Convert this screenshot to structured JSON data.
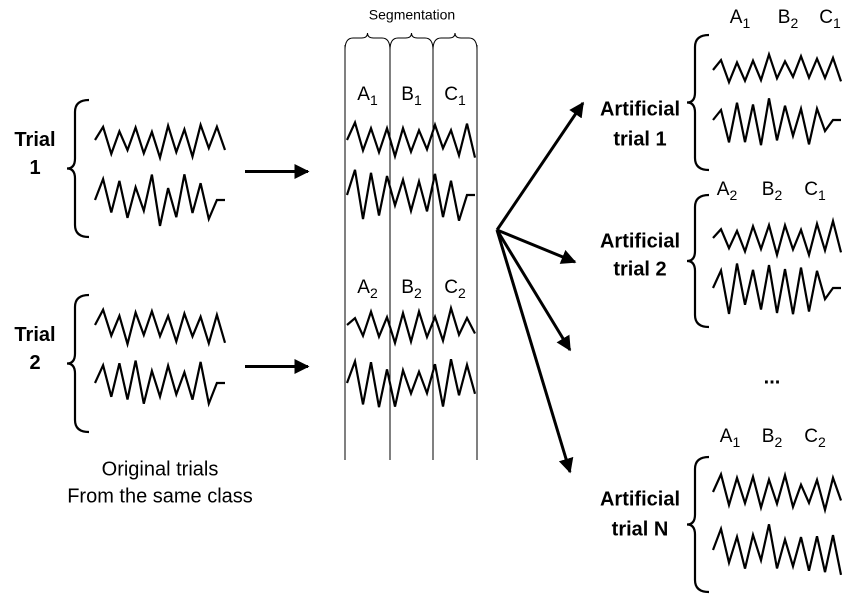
{
  "segmentation_title": "Segmentation",
  "original": {
    "trials": [
      {
        "label": [
          "Trial",
          "1"
        ]
      },
      {
        "label": [
          "Trial",
          "2"
        ]
      }
    ],
    "caption": [
      "Original trials",
      "From the same class"
    ]
  },
  "segments": [
    [
      {
        "letter": "A",
        "sub": "1"
      },
      {
        "letter": "B",
        "sub": "1"
      },
      {
        "letter": "C",
        "sub": "1"
      }
    ],
    [
      {
        "letter": "A",
        "sub": "2"
      },
      {
        "letter": "B",
        "sub": "2"
      },
      {
        "letter": "C",
        "sub": "2"
      }
    ]
  ],
  "artificial": [
    {
      "label": [
        "Artificial",
        "trial 1"
      ],
      "segments": [
        {
          "letter": "A",
          "sub": "1"
        },
        {
          "letter": "B",
          "sub": "2"
        },
        {
          "letter": "C",
          "sub": "1"
        }
      ]
    },
    {
      "label": [
        "Artificial",
        "trial 2"
      ],
      "segments": [
        {
          "letter": "A",
          "sub": "2"
        },
        {
          "letter": "B",
          "sub": "2"
        },
        {
          "letter": "C",
          "sub": "1"
        }
      ]
    },
    {
      "label": [
        "Artificial",
        "trial N"
      ],
      "segments": [
        {
          "letter": "A",
          "sub": "1"
        },
        {
          "letter": "B",
          "sub": "2"
        },
        {
          "letter": "C",
          "sub": "2"
        }
      ]
    }
  ],
  "ellipsis": "..."
}
